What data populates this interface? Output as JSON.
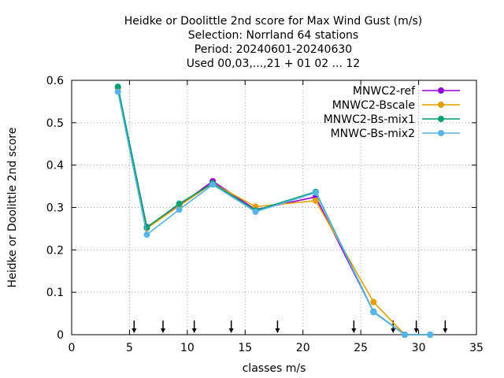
{
  "chart_data": {
    "type": "line",
    "title_lines": [
      "Heidke or Doolittle 2nd score  for Max Wind Gust (m/s)",
      "Selection: Norrland     64 stations",
      "Period: 20240601-20240630",
      "Used 00,03,...,21 + 01 02 ... 12"
    ],
    "xlabel": "classes m/s",
    "ylabel": "Heidke or Doolittle 2nd score",
    "xlim": [
      0,
      35
    ],
    "ylim": [
      0,
      0.6
    ],
    "xticks": [
      0,
      5,
      10,
      15,
      20,
      25,
      30,
      35
    ],
    "yticks": [
      0,
      0.1,
      0.2,
      0.3,
      0.4,
      0.5,
      0.6
    ],
    "xtick_labels": [
      "0",
      "5",
      "10",
      "15",
      "20",
      "25",
      "30",
      "35"
    ],
    "ytick_labels": [
      "0",
      "0.1",
      "0.2",
      "0.3",
      "0.4",
      "0.5",
      "0.6"
    ],
    "grid": true,
    "legend_position": "top-right",
    "arrow_marks_x": [
      5.4,
      7.9,
      10.6,
      13.8,
      17.8,
      24.4,
      27.8,
      29.8,
      32.3
    ],
    "series": [
      {
        "name": "MNWC2-ref",
        "color": "#9400d3",
        "x": [
          4.0,
          6.5,
          9.3,
          12.2,
          15.9,
          21.1,
          26.1,
          28.8,
          31.0
        ],
        "y": [
          0.583,
          0.254,
          0.305,
          0.362,
          0.295,
          0.325,
          0.054,
          0.0,
          0.0
        ]
      },
      {
        "name": "MNWC2-Bscale",
        "color": "#e69f00",
        "x": [
          4.0,
          6.5,
          9.3,
          12.2,
          15.9,
          21.1,
          26.1,
          28.8,
          31.0
        ],
        "y": [
          0.582,
          0.251,
          0.304,
          0.357,
          0.302,
          0.316,
          0.077,
          0.0,
          0.0
        ]
      },
      {
        "name": "MNWC2-Bs-mix1",
        "color": "#009e73",
        "x": [
          4.0,
          6.5,
          9.3,
          12.2,
          15.9,
          21.1,
          26.1,
          28.8,
          31.0
        ],
        "y": [
          0.585,
          0.253,
          0.309,
          0.357,
          0.293,
          0.337,
          0.054,
          0.0,
          0.0
        ]
      },
      {
        "name": "MNWC-Bs-mix2",
        "color": "#56b4e9",
        "x": [
          4.0,
          6.5,
          9.3,
          12.2,
          15.9,
          21.1,
          26.1,
          28.8,
          31.0
        ],
        "y": [
          0.573,
          0.236,
          0.295,
          0.354,
          0.29,
          0.335,
          0.053,
          0.0,
          0.0
        ]
      }
    ]
  }
}
